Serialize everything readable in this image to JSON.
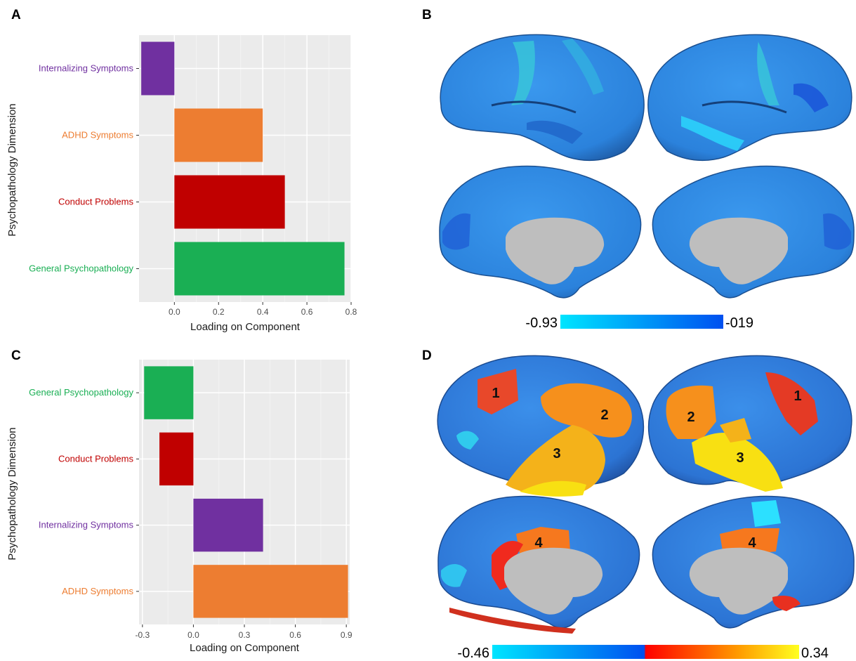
{
  "panels": {
    "a": "A",
    "b": "B",
    "c": "C",
    "d": "D"
  },
  "chart_data": [
    {
      "id": "A",
      "type": "bar",
      "orientation": "horizontal",
      "xlabel": "Loading on Component",
      "ylabel": "Psychopathology Dimension",
      "xlim": [
        -0.16,
        0.8
      ],
      "xticks": [
        0.0,
        0.2,
        0.4,
        0.6,
        0.8
      ],
      "xtick_labels": [
        "0.0",
        "0.2",
        "0.4",
        "0.6",
        "0.8"
      ],
      "grid": true,
      "categories": [
        "Internalizing Symptoms",
        "ADHD Symptoms",
        "Conduct Problems",
        "General Psychopathology"
      ],
      "values": [
        -0.15,
        0.4,
        0.5,
        0.77
      ],
      "colors": [
        "#7030a0",
        "#ed7d31",
        "#c00000",
        "#1aaf54"
      ]
    },
    {
      "id": "C",
      "type": "bar",
      "orientation": "horizontal",
      "xlabel": "Loading on Component",
      "ylabel": "Psychopathology Dimension",
      "xlim": [
        -0.32,
        0.92
      ],
      "xticks": [
        -0.3,
        0.0,
        0.3,
        0.6,
        0.9
      ],
      "xtick_labels": [
        "-0.3",
        "0.0",
        "0.3",
        "0.6",
        "0.9"
      ],
      "grid": true,
      "categories": [
        "General Psychopathology",
        "Conduct Problems",
        "Internalizing Symptoms",
        "ADHD Symptoms"
      ],
      "values": [
        -0.29,
        -0.2,
        0.41,
        0.91
      ],
      "colors": [
        "#1aaf54",
        "#c00000",
        "#7030a0",
        "#ed7d31"
      ]
    }
  ],
  "brain_maps": {
    "b": {
      "min_label": "-0.93",
      "max_label": "-019",
      "colors": [
        "#00e5ff",
        "#0050f0"
      ]
    },
    "d": {
      "min_label": "-0.46",
      "max_label": "0.34",
      "colors": [
        "#00e5ff",
        "#0050f0",
        "#ff0000",
        "#ff9a00",
        "#ffff20"
      ],
      "regions": [
        "1",
        "2",
        "3",
        "4",
        "1",
        "2",
        "3",
        "4"
      ]
    }
  }
}
